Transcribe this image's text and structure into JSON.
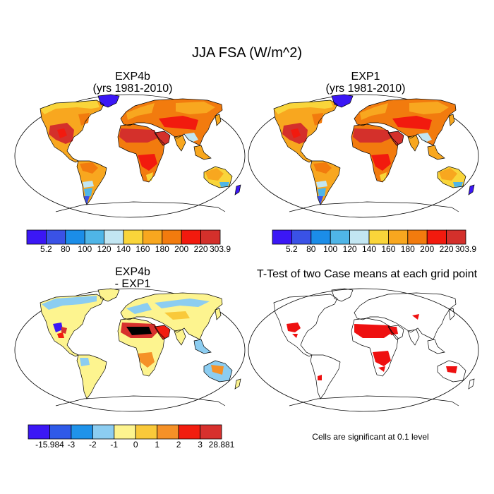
{
  "title": "JJA FSA (W/m^2)",
  "panels": [
    {
      "id": "exp4b",
      "title_line1": "EXP4b",
      "title_line2": "(yrs 1981-2010)"
    },
    {
      "id": "exp1",
      "title_line1": "EXP1",
      "title_line2": "(yrs 1981-2010)"
    },
    {
      "id": "diff",
      "title_line1": "EXP4b",
      "title_line2": "- EXP1"
    },
    {
      "id": "ttest",
      "title_line1": "T-Test of two Case means at each grid point"
    }
  ],
  "colorbar_abs": {
    "labels": [
      "5.2",
      "80",
      "100",
      "120",
      "140",
      "160",
      "180",
      "200",
      "220",
      "303.9"
    ],
    "colors": [
      "#3b17f5",
      "#3a52e6",
      "#1b8de8",
      "#4fb5e7",
      "#c2e6f2",
      "#f9d53a",
      "#f8a71f",
      "#f27b0e",
      "#f21a0e",
      "#d4302b"
    ]
  },
  "colorbar_diff": {
    "labels": [
      "-15.984",
      "-3",
      "-2",
      "-1",
      "0",
      "1",
      "2",
      "3",
      "28.881"
    ],
    "colors": [
      "#3b17f5",
      "#2f5ae8",
      "#1f93ea",
      "#8ccdf1",
      "#fdf48f",
      "#f9c93a",
      "#f59127",
      "#f21d0f",
      "#d7302d"
    ]
  },
  "significance_note": "Cells are significant at 0.1 level"
}
